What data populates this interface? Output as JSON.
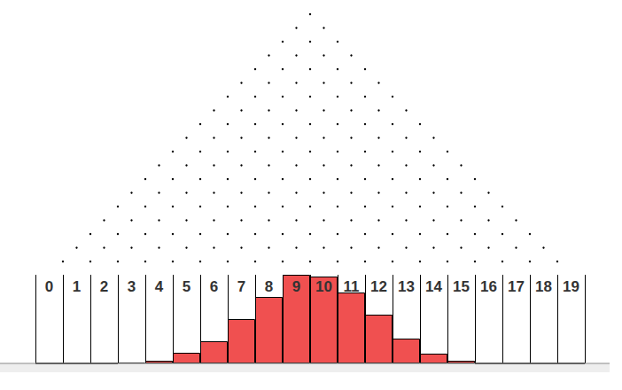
{
  "chart_data": {
    "type": "bar",
    "categories": [
      "0",
      "1",
      "2",
      "3",
      "4",
      "5",
      "6",
      "7",
      "8",
      "9",
      "10",
      "11",
      "12",
      "13",
      "14",
      "15",
      "16",
      "17",
      "18",
      "19"
    ],
    "values": [
      0,
      0,
      0,
      1,
      3,
      12,
      25,
      50,
      75,
      100,
      98,
      80,
      55,
      28,
      11,
      3,
      0,
      0,
      0,
      0
    ],
    "color": "#f05050",
    "ylim": [
      0,
      100
    ],
    "grid": true,
    "tick_labels": "x"
  }
}
